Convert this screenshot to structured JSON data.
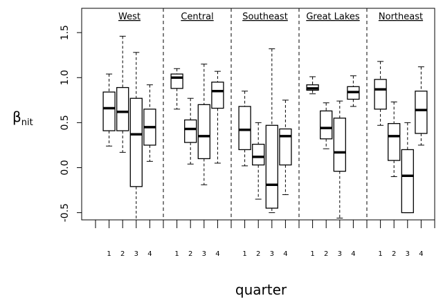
{
  "chart_data": {
    "type": "boxplot",
    "xlabel": "quarter",
    "ylabel": "β",
    "ylabel_subscript": "nit",
    "categories": [
      "1",
      "2",
      "3",
      "4"
    ],
    "ylim": [
      -0.58,
      1.77
    ],
    "yticks": [
      -0.5,
      {
        "value": 0,
        "label": "0.0"
      },
      0.5,
      {
        "value": 1,
        "label": "1.0"
      },
      1.5
    ],
    "color": "#000000",
    "series": [
      {
        "name": "West",
        "values": [
          {
            "low": 0.24,
            "q1": 0.41,
            "median": 0.66,
            "q3": 0.84,
            "high": 1.04
          },
          {
            "low": 0.17,
            "q1": 0.41,
            "median": 0.62,
            "q3": 0.89,
            "high": 1.46
          },
          {
            "low": -0.58,
            "q1": -0.21,
            "median": 0.37,
            "q3": 0.77,
            "high": 1.28
          },
          {
            "low": 0.07,
            "q1": 0.25,
            "median": 0.45,
            "q3": 0.65,
            "high": 0.92
          }
        ]
      },
      {
        "name": "Central",
        "values": [
          {
            "low": 0.65,
            "q1": 0.88,
            "median": 1.0,
            "q3": 1.04,
            "high": 1.1
          },
          {
            "low": 0.04,
            "q1": 0.28,
            "median": 0.43,
            "q3": 0.53,
            "high": 0.77
          },
          {
            "low": -0.19,
            "q1": 0.1,
            "median": 0.35,
            "q3": 0.7,
            "high": 1.15
          },
          {
            "low": 0.05,
            "q1": 0.66,
            "median": 0.85,
            "q3": 0.95,
            "high": 1.07
          }
        ]
      },
      {
        "name": "Southeast",
        "values": [
          {
            "low": 0.02,
            "q1": 0.2,
            "median": 0.42,
            "q3": 0.68,
            "high": 0.85
          },
          {
            "low": -0.35,
            "q1": 0.03,
            "median": 0.12,
            "q3": 0.26,
            "high": 0.5
          },
          {
            "low": -0.5,
            "q1": -0.45,
            "median": -0.19,
            "q3": 0.47,
            "high": 1.32
          },
          {
            "low": -0.3,
            "q1": 0.03,
            "median": 0.35,
            "q3": 0.43,
            "high": 0.75
          }
        ]
      },
      {
        "name": "Great Lakes",
        "values": [
          {
            "low": 0.82,
            "q1": 0.86,
            "median": 0.88,
            "q3": 0.92,
            "high": 1.01
          },
          {
            "low": 0.21,
            "q1": 0.32,
            "median": 0.44,
            "q3": 0.63,
            "high": 0.72
          },
          {
            "low": -0.56,
            "q1": -0.04,
            "median": 0.17,
            "q3": 0.55,
            "high": 0.74
          },
          {
            "low": 0.68,
            "q1": 0.76,
            "median": 0.84,
            "q3": 0.9,
            "high": 1.02
          }
        ]
      },
      {
        "name": "Northeast",
        "values": [
          {
            "low": 0.47,
            "q1": 0.65,
            "median": 0.87,
            "q3": 0.98,
            "high": 1.18
          },
          {
            "low": -0.1,
            "q1": 0.08,
            "median": 0.35,
            "q3": 0.49,
            "high": 0.73
          },
          {
            "low": -0.5,
            "q1": -0.5,
            "median": -0.09,
            "q3": 0.2,
            "high": 0.5
          },
          {
            "low": 0.25,
            "q1": 0.38,
            "median": 0.64,
            "q3": 0.85,
            "high": 1.12
          }
        ]
      }
    ]
  }
}
